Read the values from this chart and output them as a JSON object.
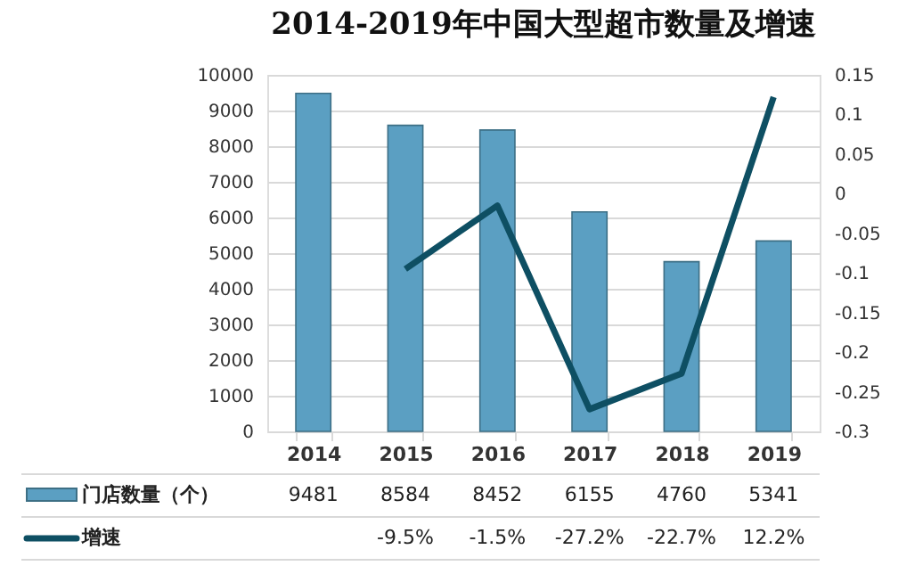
{
  "chart_data": {
    "type": "bar",
    "title": "2014-2019年中国大型超市数量及增速",
    "categories": [
      "2014",
      "2015",
      "2016",
      "2017",
      "2018",
      "2019"
    ],
    "series": [
      {
        "name": "门店数量（个）",
        "color": "#5b9fc2",
        "values": [
          9481,
          8584,
          8452,
          6155,
          4760,
          5341
        ],
        "value_labels": [
          "9481",
          "8584",
          "8452",
          "6155",
          "4760",
          "5341"
        ]
      },
      {
        "name": "增速",
        "type": "line",
        "axis": "y2",
        "color": "#0e4f63",
        "values": [
          null,
          -0.095,
          -0.015,
          -0.272,
          -0.227,
          0.122
        ],
        "value_labels": [
          null,
          "-9.5%",
          "-1.5%",
          "-27.2%",
          "-22.7%",
          "12.2%"
        ]
      }
    ],
    "ylim": [
      0,
      10000
    ],
    "yticks": [
      0,
      1000,
      2000,
      3000,
      4000,
      5000,
      6000,
      7000,
      8000,
      9000,
      10000
    ],
    "y2lim": [
      -0.3,
      0.15
    ],
    "y2ticks": [
      -0.3,
      -0.25,
      -0.2,
      -0.15,
      -0.1,
      -0.05,
      0,
      0.05,
      0.1,
      0.15
    ],
    "grid": "y",
    "legend": "bottom"
  }
}
